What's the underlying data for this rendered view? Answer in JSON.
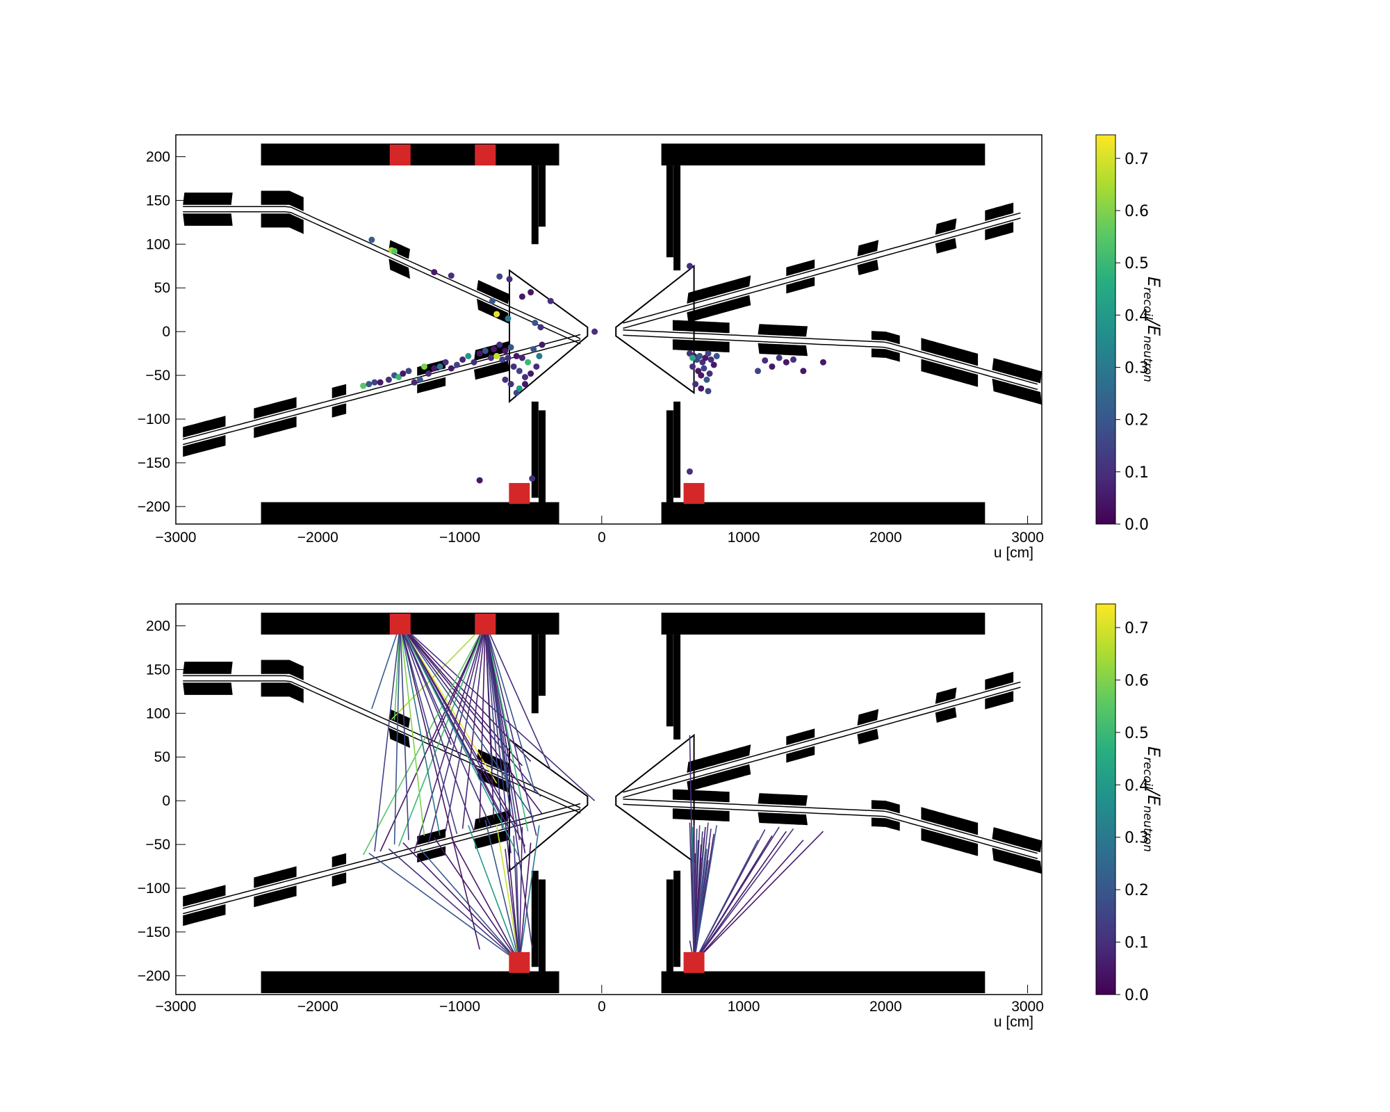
{
  "chart_data": [
    {
      "type": "scatter",
      "title": "",
      "xlabel": "u [cm]",
      "ylabel": "",
      "xlim": [
        -3000,
        3100
      ],
      "ylim": [
        -220,
        225
      ],
      "xticks": [
        -3000,
        -2000,
        -1000,
        0,
        1000,
        2000,
        3000
      ],
      "yticks": [
        200,
        150,
        100,
        50,
        0,
        -50,
        -100,
        -150,
        -200
      ],
      "detectors": [
        [
          -1420,
          202
        ],
        [
          -820,
          202
        ],
        [
          -580,
          -185
        ],
        [
          650,
          -185
        ]
      ],
      "points": [
        [
          -1620,
          105,
          0.22
        ],
        [
          -1480,
          93,
          0.65
        ],
        [
          -1460,
          92,
          0.55
        ],
        [
          -1180,
          68,
          0.05
        ],
        [
          -1060,
          64,
          0.1
        ],
        [
          -770,
          35,
          0.2
        ],
        [
          -740,
          20,
          0.72
        ],
        [
          -660,
          15,
          0.3
        ],
        [
          -560,
          40,
          0.05
        ],
        [
          -650,
          60,
          0.1
        ],
        [
          -720,
          63,
          0.15
        ],
        [
          -360,
          35,
          0.1
        ],
        [
          -500,
          45,
          0.05
        ],
        [
          -470,
          10,
          0.2
        ],
        [
          -430,
          5,
          0.1
        ],
        [
          -50,
          0,
          0.1
        ],
        [
          -1680,
          -62,
          0.55
        ],
        [
          -1640,
          -60,
          0.2
        ],
        [
          -1600,
          -58,
          0.15
        ],
        [
          -1560,
          -58,
          0.05
        ],
        [
          -1500,
          -55,
          0.1
        ],
        [
          -1460,
          -50,
          0.2
        ],
        [
          -1430,
          -52,
          0.5
        ],
        [
          -1400,
          -48,
          0.05
        ],
        [
          -1360,
          -45,
          0.15
        ],
        [
          -1320,
          -58,
          0.08
        ],
        [
          -1280,
          -55,
          0.2
        ],
        [
          -1250,
          -40,
          0.6
        ],
        [
          -1220,
          -48,
          0.1
        ],
        [
          -1180,
          -42,
          0.05
        ],
        [
          -1140,
          -40,
          0.3
        ],
        [
          -1100,
          -35,
          0.1
        ],
        [
          -1060,
          -42,
          0.05
        ],
        [
          -1020,
          -38,
          0.15
        ],
        [
          -980,
          -32,
          0.08
        ],
        [
          -940,
          -28,
          0.4
        ],
        [
          -900,
          -35,
          0.1
        ],
        [
          -860,
          -25,
          0.05
        ],
        [
          -820,
          -22,
          0.2
        ],
        [
          -780,
          -30,
          0.1
        ],
        [
          -760,
          -20,
          0.05
        ],
        [
          -740,
          -28,
          0.68
        ],
        [
          -720,
          -15,
          0.1
        ],
        [
          -700,
          -32,
          0.15
        ],
        [
          -680,
          -22,
          0.05
        ],
        [
          -660,
          -30,
          0.1
        ],
        [
          -640,
          -18,
          0.2
        ],
        [
          -620,
          -40,
          0.1
        ],
        [
          -600,
          -28,
          0.05
        ],
        [
          -580,
          -45,
          0.15
        ],
        [
          -560,
          -30,
          0.08
        ],
        [
          -540,
          -52,
          0.1
        ],
        [
          -520,
          -35,
          0.5
        ],
        [
          -500,
          -48,
          0.05
        ],
        [
          -480,
          -20,
          0.2
        ],
        [
          -460,
          -40,
          0.1
        ],
        [
          -440,
          -28,
          0.3
        ],
        [
          -420,
          -15,
          0.05
        ],
        [
          -640,
          -60,
          0.1
        ],
        [
          -600,
          -70,
          0.15
        ],
        [
          -580,
          -65,
          0.4
        ],
        [
          -540,
          -60,
          0.05
        ],
        [
          -680,
          -55,
          0.1
        ],
        [
          -860,
          -170,
          0.05
        ],
        [
          -490,
          -168,
          0.1
        ],
        [
          620,
          -25,
          0.1
        ],
        [
          650,
          -28,
          0.05
        ],
        [
          670,
          -32,
          0.15
        ],
        [
          690,
          -28,
          0.2
        ],
        [
          710,
          -35,
          0.1
        ],
        [
          730,
          -30,
          0.05
        ],
        [
          750,
          -25,
          0.15
        ],
        [
          770,
          -32,
          0.1
        ],
        [
          790,
          -38,
          0.05
        ],
        [
          810,
          -28,
          0.2
        ],
        [
          640,
          -40,
          0.1
        ],
        [
          680,
          -45,
          0.05
        ],
        [
          720,
          -42,
          0.15
        ],
        [
          760,
          -48,
          0.1
        ],
        [
          700,
          -50,
          0.05
        ],
        [
          740,
          -55,
          0.2
        ],
        [
          660,
          -60,
          0.1
        ],
        [
          700,
          -65,
          0.05
        ],
        [
          750,
          -68,
          0.15
        ],
        [
          640,
          -30,
          0.45
        ],
        [
          1150,
          -33,
          0.1
        ],
        [
          1200,
          -40,
          0.05
        ],
        [
          1250,
          -30,
          0.1
        ],
        [
          1300,
          -35,
          0.05
        ],
        [
          1350,
          -32,
          0.1
        ],
        [
          1420,
          -45,
          0.05
        ],
        [
          1100,
          -45,
          0.15
        ],
        [
          1560,
          -35,
          0.05
        ],
        [
          620,
          -160,
          0.1
        ],
        [
          620,
          75,
          0.1
        ]
      ]
    },
    {
      "type": "line",
      "title": "",
      "xlabel": "u [cm]",
      "ylabel": "",
      "xlim": [
        -3000,
        3100
      ],
      "ylim": [
        -220,
        225
      ],
      "xticks": [
        -3000,
        -2000,
        -1000,
        0,
        1000,
        2000,
        3000
      ],
      "yticks": [
        200,
        150,
        100,
        50,
        0,
        -50,
        -100,
        -150,
        -200
      ],
      "detectors": [
        [
          -1420,
          202
        ],
        [
          -820,
          202
        ],
        [
          -580,
          -185
        ],
        [
          650,
          -185
        ]
      ]
    }
  ],
  "colorbar": {
    "label_main": "E",
    "label_sub": "recoil",
    "label_sep": "/E",
    "label_sub2": "neutron",
    "ticks": [
      "0.0",
      "0.1",
      "0.2",
      "0.3",
      "0.4",
      "0.5",
      "0.6",
      "0.7"
    ],
    "vmax": 0.745,
    "colormap": "viridis"
  },
  "colors": {
    "detector": "#d62728",
    "geometry": "#000000"
  }
}
